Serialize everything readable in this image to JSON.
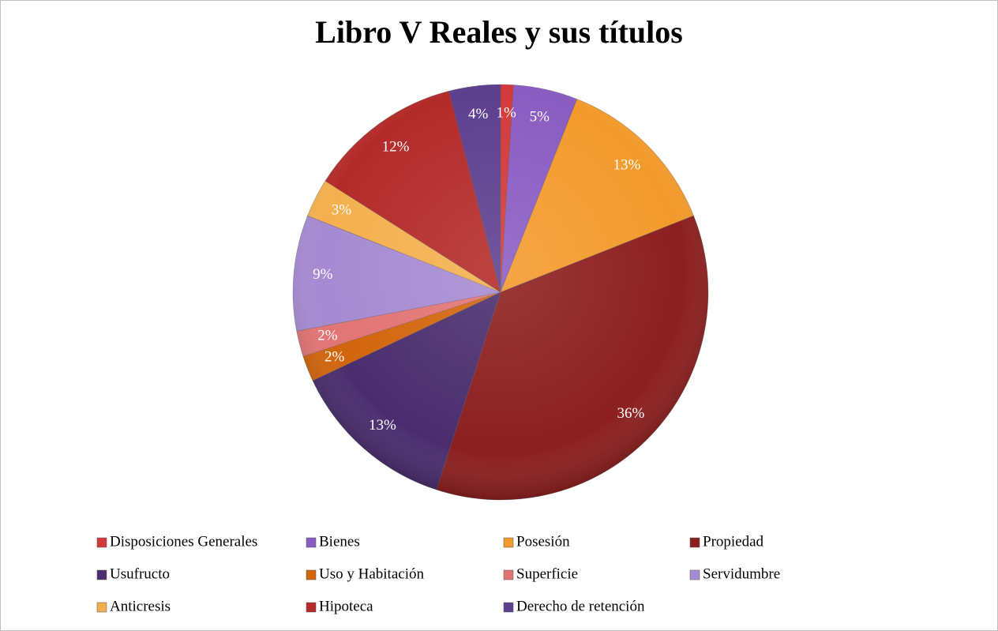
{
  "chart_data": {
    "type": "pie",
    "title": "Libro V Reales y sus títulos",
    "categories": [
      "Disposiciones Generales",
      "Bienes",
      "Posesión",
      "Propiedad",
      "Usufructo",
      "Uso y Habitación",
      "Superficie",
      "Servidumbre",
      "Anticresis",
      "Hipoteca",
      "Derecho de retención"
    ],
    "values": [
      1,
      5,
      13,
      36,
      13,
      2,
      2,
      9,
      3,
      12,
      4
    ],
    "value_labels": [
      "1%",
      "5%",
      "13%",
      "36%",
      "13%",
      "2%",
      "2%",
      "9%",
      "3%",
      "12%",
      "4%"
    ],
    "colors": [
      "#d23a3a",
      "#8a5cc2",
      "#f39a2c",
      "#8c1f1f",
      "#4a2d6e",
      "#d2650c",
      "#e27474",
      "#a68ad2",
      "#f4b04e",
      "#b42a2a",
      "#5d3f8f"
    ],
    "legend": "bottom"
  }
}
